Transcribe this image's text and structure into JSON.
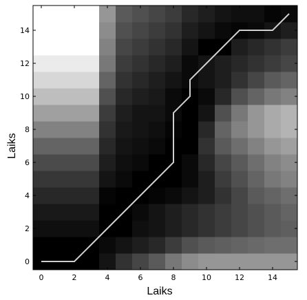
{
  "chart_data": {
    "type": "heatmap",
    "title": "",
    "xlabel": "Laiks",
    "ylabel": "Laiks",
    "xlim": [
      -0.5,
      15.5
    ],
    "ylim": [
      -0.5,
      15.5
    ],
    "x_ticks": [
      0,
      2,
      4,
      6,
      8,
      10,
      12,
      14
    ],
    "y_ticks": [
      0,
      2,
      4,
      6,
      8,
      10,
      12,
      14
    ],
    "colormap": "gray",
    "grid": false,
    "legend": "none",
    "matrix_rows_y0_to_y15": [
      [
        0,
        0,
        0,
        0,
        20,
        50,
        70,
        90,
        120,
        140,
        150,
        150,
        150,
        150,
        150,
        150
      ],
      [
        0,
        0,
        0,
        0,
        10,
        20,
        30,
        40,
        60,
        80,
        90,
        95,
        100,
        105,
        110,
        110
      ],
      [
        15,
        15,
        15,
        15,
        0,
        0,
        15,
        20,
        30,
        40,
        50,
        60,
        70,
        80,
        90,
        95
      ],
      [
        25,
        25,
        25,
        25,
        0,
        0,
        10,
        20,
        30,
        40,
        50,
        60,
        70,
        80,
        90,
        100
      ],
      [
        40,
        40,
        40,
        40,
        5,
        0,
        0,
        5,
        10,
        20,
        30,
        50,
        70,
        90,
        100,
        110
      ],
      [
        55,
        55,
        55,
        55,
        20,
        10,
        0,
        0,
        0,
        10,
        30,
        60,
        80,
        100,
        120,
        130
      ],
      [
        75,
        75,
        75,
        75,
        30,
        15,
        10,
        0,
        0,
        10,
        40,
        70,
        90,
        110,
        130,
        140
      ],
      [
        100,
        100,
        100,
        100,
        40,
        20,
        15,
        10,
        0,
        0,
        50,
        90,
        110,
        130,
        150,
        160
      ],
      [
        130,
        130,
        130,
        130,
        50,
        25,
        20,
        15,
        5,
        0,
        40,
        100,
        130,
        150,
        170,
        180
      ],
      [
        160,
        160,
        160,
        160,
        60,
        30,
        20,
        20,
        10,
        0,
        20,
        80,
        120,
        150,
        170,
        180
      ],
      [
        190,
        190,
        190,
        190,
        80,
        40,
        30,
        25,
        10,
        0,
        10,
        40,
        80,
        100,
        120,
        130
      ],
      [
        215,
        215,
        215,
        215,
        100,
        50,
        40,
        30,
        20,
        10,
        20,
        30,
        50,
        70,
        90,
        100
      ],
      [
        235,
        235,
        235,
        235,
        120,
        60,
        50,
        40,
        30,
        10,
        20,
        30,
        40,
        50,
        60,
        70
      ],
      [
        255,
        255,
        255,
        255,
        130,
        70,
        60,
        50,
        40,
        20,
        0,
        0,
        30,
        40,
        50,
        60
      ],
      [
        255,
        255,
        255,
        255,
        140,
        80,
        70,
        60,
        50,
        30,
        20,
        10,
        5,
        10,
        20,
        30
      ],
      [
        255,
        255,
        255,
        255,
        150,
        90,
        80,
        70,
        60,
        40,
        30,
        20,
        15,
        15,
        5,
        10
      ]
    ],
    "path_x": [
      0,
      2,
      3,
      4,
      5,
      6,
      7,
      8,
      8,
      9,
      9,
      10,
      11,
      12,
      13,
      14,
      15
    ],
    "path_y": [
      0,
      0,
      1,
      2,
      3,
      4,
      5,
      6,
      9,
      10,
      11,
      12,
      13,
      14,
      14,
      14,
      15
    ],
    "path_color": "#d0d0d0"
  }
}
